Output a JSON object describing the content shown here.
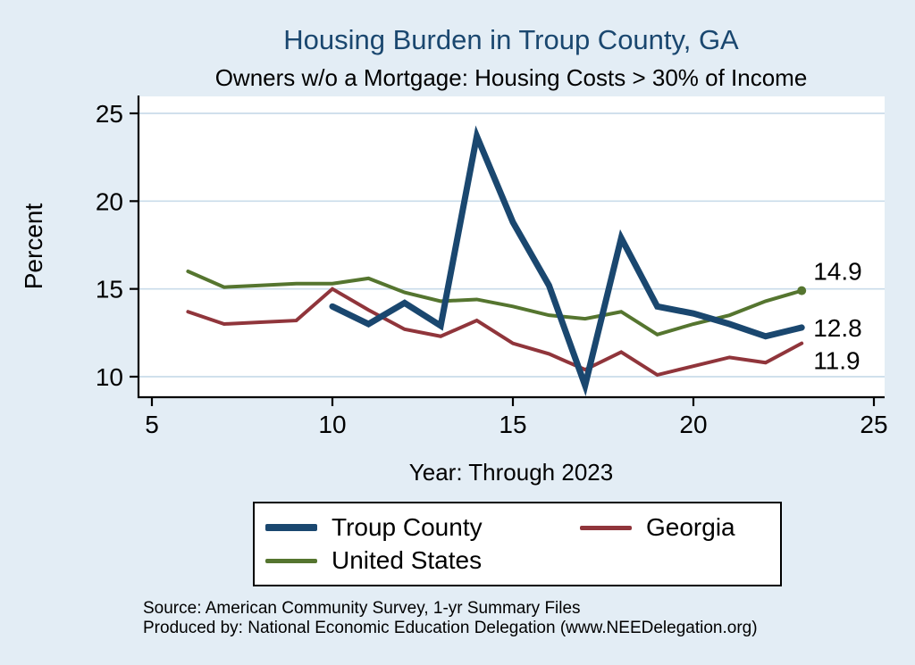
{
  "footer": {
    "source": "Source: American Community Survey, 1-yr Summary Files",
    "produced_by": "Produced by: National Economic Education Delegation (www.NEEDelegation.org)"
  },
  "colors": {
    "background": "#e3edf5",
    "plot_background": "#ffffff",
    "title": "#1a476f",
    "grid": "#c9dcea",
    "axis": "#000000"
  },
  "chart_data": {
    "type": "line",
    "title": "Housing Burden in Troup County, GA",
    "subtitle": "Owners w/o a Mortgage: Housing Costs > 30% of Income",
    "xlabel": "Year: Through 2023",
    "ylabel": "Percent",
    "xlim": [
      4.6,
      25.3
    ],
    "ylim": [
      9.3,
      26
    ],
    "xticks": [
      5,
      10,
      15,
      20,
      25
    ],
    "yticks": [
      10,
      15,
      20,
      25
    ],
    "grid": "horizontal",
    "legend_position": "bottom",
    "series": [
      {
        "name": "Troup County",
        "color": "#1a476f",
        "width": 7,
        "end_label": "12.8",
        "x": [
          10,
          11,
          12,
          13,
          14,
          15,
          16,
          17,
          18,
          19,
          20,
          21,
          22,
          23
        ],
        "values": [
          14.0,
          13.0,
          14.2,
          12.9,
          23.7,
          18.8,
          15.2,
          9.5,
          17.9,
          14.0,
          13.6,
          13.0,
          12.3,
          12.8
        ]
      },
      {
        "name": "Georgia",
        "color": "#90353b",
        "width": 4,
        "end_label": "11.9",
        "x": [
          6,
          7,
          8,
          9,
          10,
          11,
          12,
          13,
          14,
          15,
          16,
          17,
          18,
          19,
          20,
          21,
          22,
          23
        ],
        "values": [
          13.7,
          13.0,
          13.1,
          13.2,
          15.0,
          13.8,
          12.7,
          12.3,
          13.2,
          11.9,
          11.3,
          10.4,
          11.4,
          10.1,
          10.6,
          11.1,
          10.8,
          11.9
        ]
      },
      {
        "name": "United States",
        "color": "#55752f",
        "width": 4,
        "end_label": "14.9",
        "x": [
          6,
          7,
          8,
          9,
          10,
          11,
          12,
          13,
          14,
          15,
          16,
          17,
          18,
          19,
          20,
          21,
          22,
          23
        ],
        "values": [
          16.0,
          15.1,
          15.2,
          15.3,
          15.3,
          15.6,
          14.8,
          14.3,
          14.4,
          14.0,
          13.5,
          13.3,
          13.7,
          12.4,
          13.0,
          13.5,
          14.3,
          14.9
        ]
      }
    ]
  }
}
